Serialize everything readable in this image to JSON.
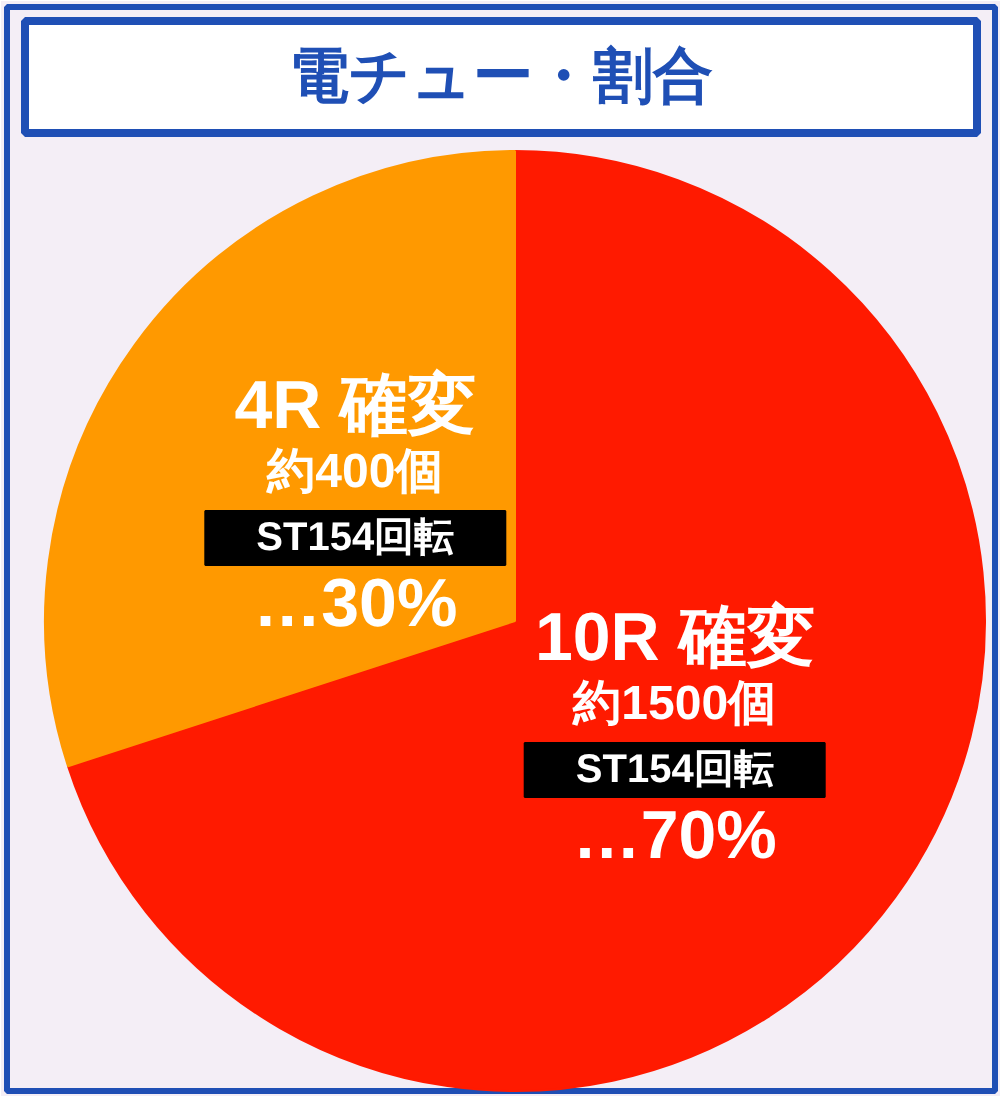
{
  "chart_data": {
    "type": "pie",
    "title": "電チュー・割合",
    "categories": [
      "10R 確変",
      "4R 確変"
    ],
    "values": [
      70,
      30
    ],
    "colors": [
      "#ff1a00",
      "#ff9900"
    ],
    "value_labels": [
      "…70%",
      "…30%"
    ],
    "annotations": [
      {
        "text": "約1500個",
        "x": "10R 確変"
      },
      {
        "text": "ST154回転",
        "x": "10R 確変"
      },
      {
        "text": "約400個",
        "x": "4R 確変"
      },
      {
        "text": "ST154回転",
        "x": "4R 確変"
      }
    ]
  }
}
